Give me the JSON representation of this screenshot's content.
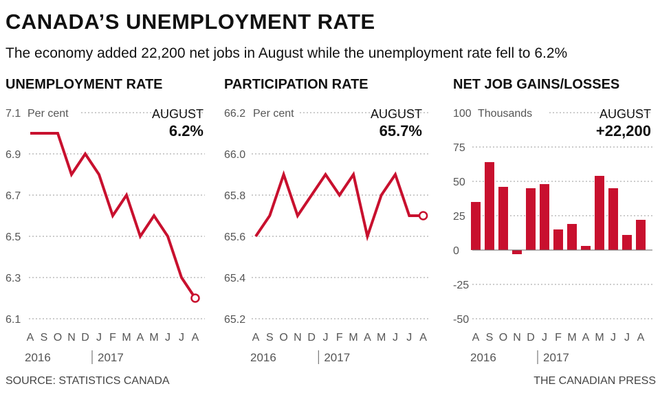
{
  "title": "CANADA’S UNEMPLOYMENT RATE",
  "subtitle": "The economy added 22,200 net jobs in August while the unemployment rate fell to 6.2%",
  "source": "SOURCE: STATISTICS CANADA",
  "credit": "THE CANADIAN PRESS",
  "colors": {
    "series": "#c8102e",
    "grid": "#999999",
    "axis_text": "#555555"
  },
  "chart_data": [
    {
      "type": "line",
      "title": "UNEMPLOYMENT RATE",
      "unit": "Per cent",
      "callout_label": "AUGUST",
      "callout_value": "6.2%",
      "categories": [
        "A",
        "S",
        "O",
        "N",
        "D",
        "J",
        "F",
        "M",
        "A",
        "M",
        "J",
        "J",
        "A"
      ],
      "year_labels": [
        "2016",
        "2017"
      ],
      "values": [
        7.0,
        7.0,
        7.0,
        6.8,
        6.9,
        6.8,
        6.6,
        6.7,
        6.5,
        6.6,
        6.5,
        6.3,
        6.2
      ],
      "ylim": [
        6.1,
        7.1
      ],
      "yticks": [
        6.1,
        6.3,
        6.5,
        6.7,
        6.9,
        7.1
      ],
      "ytick_labels": [
        "6.1",
        "6.3",
        "6.5",
        "6.7",
        "6.9",
        "7.1"
      ],
      "grid": true
    },
    {
      "type": "line",
      "title": "PARTICIPATION RATE",
      "unit": "Per cent",
      "callout_label": "AUGUST",
      "callout_value": "65.7%",
      "categories": [
        "A",
        "S",
        "O",
        "N",
        "D",
        "J",
        "F",
        "M",
        "A",
        "M",
        "J",
        "J",
        "A"
      ],
      "year_labels": [
        "2016",
        "2017"
      ],
      "values": [
        65.6,
        65.7,
        65.9,
        65.7,
        65.8,
        65.9,
        65.8,
        65.9,
        65.6,
        65.8,
        65.9,
        65.7,
        65.7
      ],
      "ylim": [
        65.2,
        66.2
      ],
      "yticks": [
        65.2,
        65.4,
        65.6,
        65.8,
        66.0,
        66.2
      ],
      "ytick_labels": [
        "65.2",
        "65.4",
        "65.6",
        "65.8",
        "66.0",
        "66.2"
      ],
      "grid": true
    },
    {
      "type": "bar",
      "title": "NET JOB GAINS/LOSSES",
      "unit": "Thousands",
      "callout_label": "AUGUST",
      "callout_value": "+22,200",
      "categories": [
        "A",
        "S",
        "O",
        "N",
        "D",
        "J",
        "F",
        "M",
        "A",
        "M",
        "J",
        "J",
        "A"
      ],
      "year_labels": [
        "2016",
        "2017"
      ],
      "values": [
        35,
        64,
        46,
        -3,
        45,
        48,
        15,
        19,
        3,
        54,
        45,
        11,
        22
      ],
      "ylim": [
        -50,
        100
      ],
      "yticks": [
        -50,
        -25,
        0,
        25,
        50,
        75,
        100
      ],
      "ytick_labels": [
        "-50",
        "-25",
        "0",
        "25",
        "50",
        "75",
        "100"
      ],
      "grid": true
    }
  ]
}
